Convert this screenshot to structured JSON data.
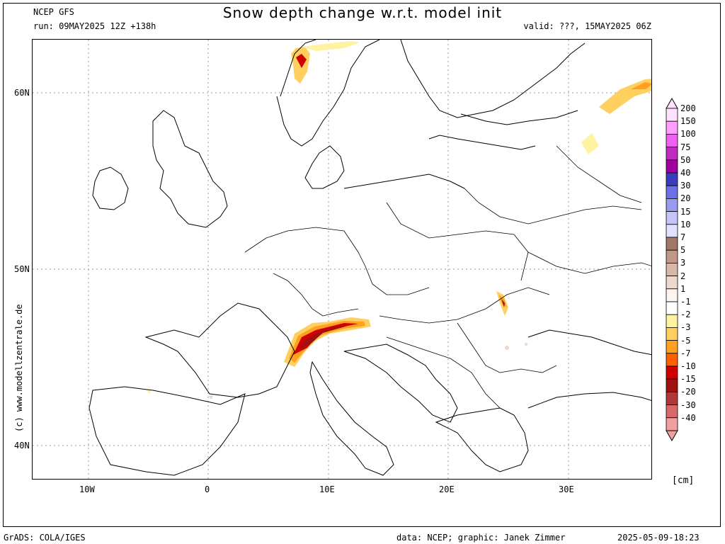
{
  "header": {
    "model": "NCEP GFS",
    "title": "Snow depth change w.r.t. model init",
    "run": "run: 09MAY2025 12Z +138h",
    "valid": "valid: ???, 15MAY2025 06Z"
  },
  "axes": {
    "lat_labels": [
      "60N",
      "50N",
      "40N"
    ],
    "lon_labels": [
      "10W",
      "0",
      "10E",
      "20E",
      "30E"
    ]
  },
  "colorbar": {
    "unit": "[cm]",
    "levels": [
      "200",
      "150",
      "100",
      "75",
      "50",
      "40",
      "30",
      "20",
      "15",
      "10",
      "7",
      "5",
      "3",
      "2",
      "1",
      "-1",
      "-2",
      "-3",
      "-5",
      "-7",
      "-10",
      "-15",
      "-20",
      "-30",
      "-40"
    ],
    "colors": [
      "#ffe0ff",
      "#ff9eff",
      "#f060f0",
      "#c02cc0",
      "#a000a0",
      "#3c3cbe",
      "#6e6ee6",
      "#9a9af0",
      "#c4c4f8",
      "#e0e0ff",
      "#a07868",
      "#c09888",
      "#d8b8a8",
      "#ecd8cc",
      "#fdf4ee",
      "#ffffff",
      "#fff2a0",
      "#ffd060",
      "#ffa020",
      "#ff6000",
      "#d00000",
      "#a01010",
      "#b03838",
      "#d86868",
      "#f0a0a0"
    ]
  },
  "credit": "(c) www.modellzentrale.de",
  "footer": {
    "left": "GrADS: COLA/IGES",
    "data": "data: NCEP; graphic: Janek Zimmer",
    "timestamp": "2025-05-09-18:23"
  }
}
